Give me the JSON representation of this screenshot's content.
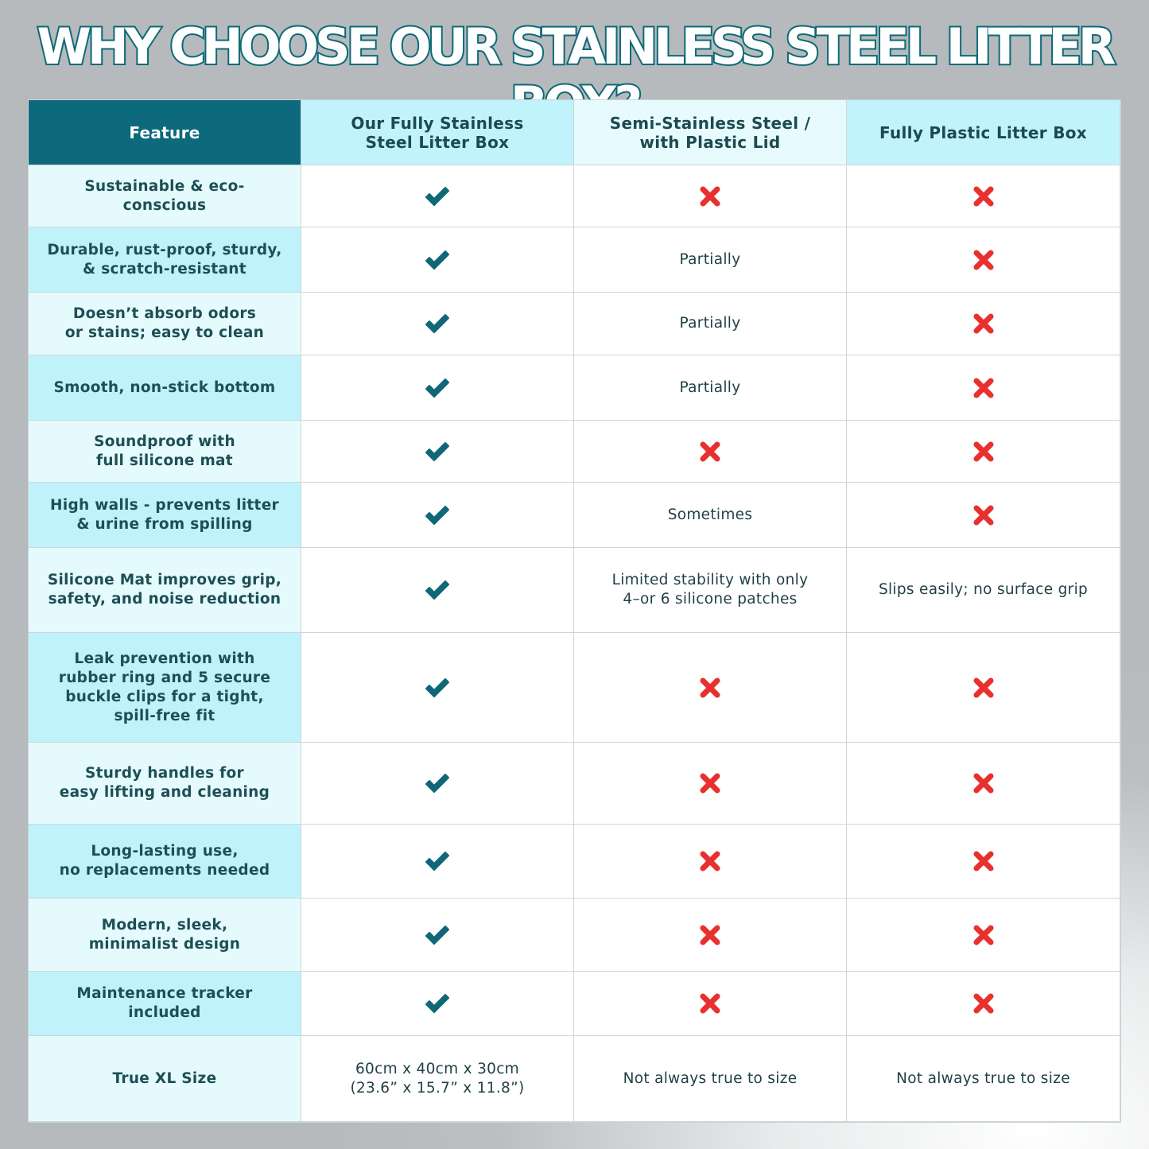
{
  "title": "WHY CHOOSE OUR STAINLESS STEEL LITTER BOX?",
  "colors": {
    "header_dark": "#0c6a7c",
    "header_cyan": "#c0f3fb",
    "check": "#0f6777",
    "cross": "#e8302e",
    "text": "#1f3f44"
  },
  "headers": [
    "Feature",
    "Our Fully Stainless\nSteel Litter Box",
    "Semi-Stainless Steel /\nwith Plastic Lid",
    "Fully Plastic Litter Box"
  ],
  "rows": [
    {
      "feature": "Sustainable & eco-conscious",
      "cells": [
        {
          "icon": "check"
        },
        {
          "icon": "cross"
        },
        {
          "icon": "cross"
        }
      ]
    },
    {
      "feature": "Durable, rust-proof, sturdy,\n& scratch-resistant",
      "cells": [
        {
          "icon": "check"
        },
        {
          "text": "Partially"
        },
        {
          "icon": "cross"
        }
      ]
    },
    {
      "feature": "Doesn’t absorb odors\nor stains; easy to clean",
      "cells": [
        {
          "icon": "check"
        },
        {
          "text": "Partially"
        },
        {
          "icon": "cross"
        }
      ]
    },
    {
      "feature": "Smooth, non-stick bottom",
      "cells": [
        {
          "icon": "check"
        },
        {
          "text": "Partially"
        },
        {
          "icon": "cross"
        }
      ]
    },
    {
      "feature": "Soundproof with\nfull silicone mat",
      "cells": [
        {
          "icon": "check"
        },
        {
          "icon": "cross"
        },
        {
          "icon": "cross"
        }
      ]
    },
    {
      "feature": "High walls - prevents litter\n& urine from spilling",
      "cells": [
        {
          "icon": "check"
        },
        {
          "text": "Sometimes"
        },
        {
          "icon": "cross"
        }
      ]
    },
    {
      "feature": "Silicone Mat improves grip,\nsafety, and noise reduction",
      "cells": [
        {
          "icon": "check"
        },
        {
          "text": "Limited stability with only\n4–or 6 silicone patches"
        },
        {
          "text": "Slips easily; no surface grip"
        }
      ]
    },
    {
      "feature": "Leak prevention with\nrubber ring and 5 secure\nbuckle clips for a tight,\nspill-free fit",
      "cells": [
        {
          "icon": "check"
        },
        {
          "icon": "cross"
        },
        {
          "icon": "cross"
        }
      ]
    },
    {
      "feature": "Sturdy handles for\neasy lifting and cleaning",
      "cells": [
        {
          "icon": "check"
        },
        {
          "icon": "cross"
        },
        {
          "icon": "cross"
        }
      ]
    },
    {
      "feature": "Long-lasting use,\nno replacements needed",
      "cells": [
        {
          "icon": "check"
        },
        {
          "icon": "cross"
        },
        {
          "icon": "cross"
        }
      ]
    },
    {
      "feature": "Modern, sleek,\nminimalist design",
      "cells": [
        {
          "icon": "check"
        },
        {
          "icon": "cross"
        },
        {
          "icon": "cross"
        }
      ]
    },
    {
      "feature": "Maintenance tracker included",
      "cells": [
        {
          "icon": "check"
        },
        {
          "icon": "cross"
        },
        {
          "icon": "cross"
        }
      ]
    },
    {
      "feature": "True XL Size",
      "cells": [
        {
          "text": "60cm x 40cm x 30cm\n(23.6” x 15.7” x 11.8”)"
        },
        {
          "text": "Not always true to size"
        },
        {
          "text": "Not always true to size"
        }
      ]
    }
  ]
}
